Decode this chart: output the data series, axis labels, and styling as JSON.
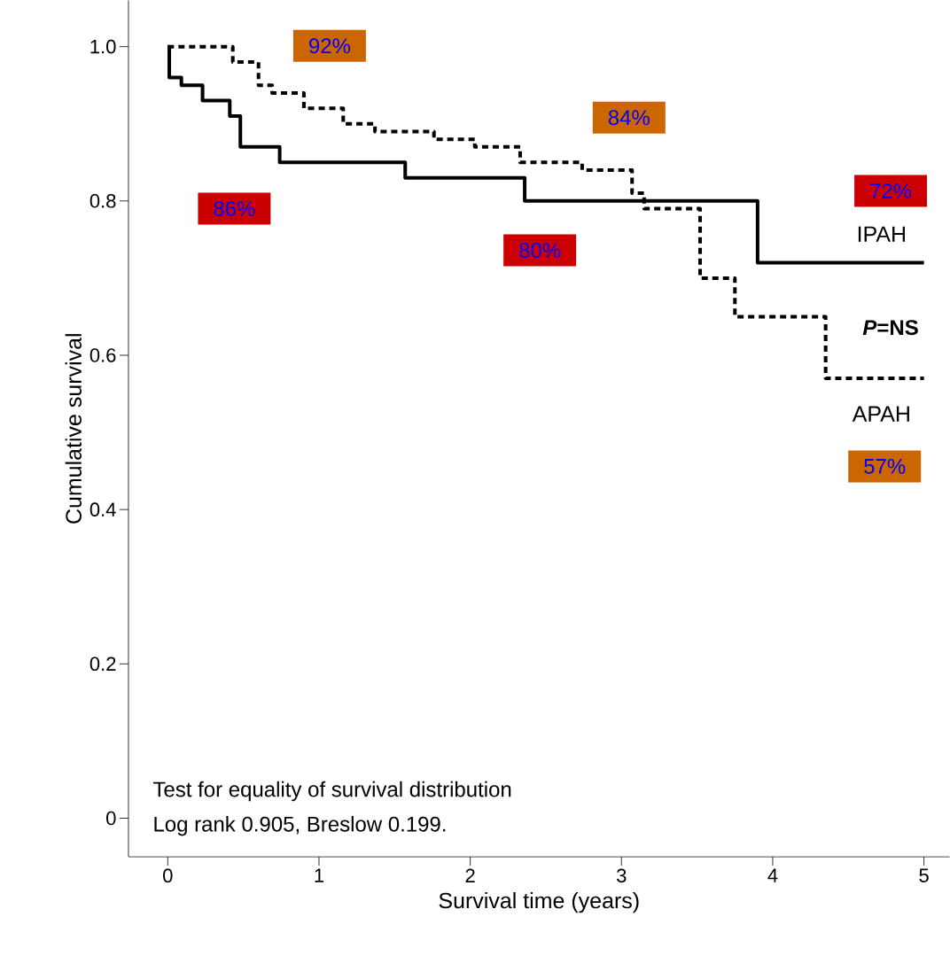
{
  "chart_data": {
    "type": "step",
    "xlabel": "Survival time (years)",
    "ylabel": "Cumulative survival",
    "xlim": [
      -0.26,
      5.17
    ],
    "ylim": [
      -0.05,
      1.06
    ],
    "xticks": [
      0,
      1,
      2,
      3,
      4,
      5
    ],
    "yticks": [
      0,
      0.2,
      0.4,
      0.6,
      0.8,
      {
        "value": 1,
        "label": "1.0"
      }
    ],
    "grid": false,
    "series": [
      {
        "name": "IPAH",
        "color": "#000000",
        "line_style": "solid",
        "x": [
          0,
          0.01,
          0.09,
          0.23,
          0.41,
          0.48,
          0.74,
          1.57,
          2.36,
          3.9,
          5
        ],
        "values": [
          1.0,
          0.96,
          0.95,
          0.93,
          0.91,
          0.87,
          0.85,
          0.83,
          0.8,
          0.72,
          0.72
        ]
      },
      {
        "name": "APAH",
        "color": "#000000",
        "line_style": "dashed",
        "x": [
          0,
          0.43,
          0.6,
          0.69,
          0.9,
          1.16,
          1.37,
          1.76,
          2.03,
          2.33,
          2.74,
          3.07,
          3.15,
          3.52,
          3.75,
          4.35,
          5
        ],
        "values": [
          1.0,
          0.98,
          0.95,
          0.94,
          0.92,
          0.9,
          0.89,
          0.88,
          0.87,
          0.85,
          0.84,
          0.81,
          0.79,
          0.7,
          0.65,
          0.57,
          0.57
        ]
      }
    ],
    "annotations": [
      "92%",
      "84%",
      "86%",
      "80%",
      "72%",
      "57%",
      "*P*=NS",
      "Test for equality of survival distribution",
      "Log rank  0.905, Breslow 0.199."
    ]
  }
}
